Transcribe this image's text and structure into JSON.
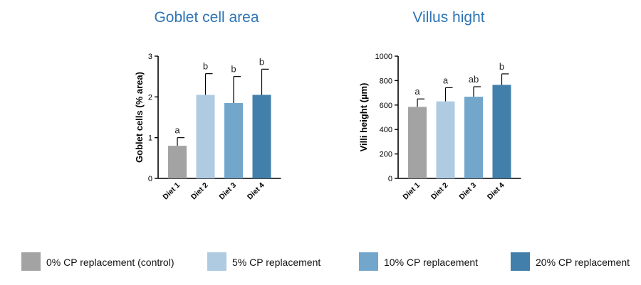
{
  "chart_data": [
    {
      "type": "bar",
      "title": "Goblet cell area",
      "title_color": "#2e74b5",
      "ylabel": "Goblet cells (% area)",
      "categories": [
        "Diet 1",
        "Diet 2",
        "Diet 3",
        "Diet 4"
      ],
      "values": [
        0.8,
        2.05,
        1.85,
        2.05
      ],
      "errors": [
        0.2,
        0.52,
        0.65,
        0.63
      ],
      "letters": [
        "a",
        "b",
        "b",
        "b"
      ],
      "ylim": [
        0,
        3
      ],
      "yticks": [
        "0",
        "1",
        "2",
        "3"
      ],
      "grid": false
    },
    {
      "type": "bar",
      "title": "Villus hight",
      "title_color": "#2e74b5",
      "ylabel": "Villi height (µm)",
      "categories": [
        "Diet 1",
        "Diet 2",
        "Diet 3",
        "Diet 4"
      ],
      "values": [
        585,
        630,
        668,
        765
      ],
      "errors": [
        65,
        112,
        82,
        90
      ],
      "letters": [
        "a",
        "a",
        "ab",
        "b"
      ],
      "ylim": [
        0,
        1000
      ],
      "yticks": [
        "0",
        "200",
        "400",
        "600",
        "800",
        "1000"
      ],
      "grid": false
    }
  ],
  "legend": {
    "placement": "bottom",
    "items": [
      {
        "label": "0% CP replacement (control)",
        "color": "#a3a3a3"
      },
      {
        "label": "5% CP replacement",
        "color": "#aecbe2"
      },
      {
        "label": "10% CP replacement",
        "color": "#73a6cb"
      },
      {
        "label": "20% CP replacement",
        "color": "#427fab"
      }
    ]
  }
}
